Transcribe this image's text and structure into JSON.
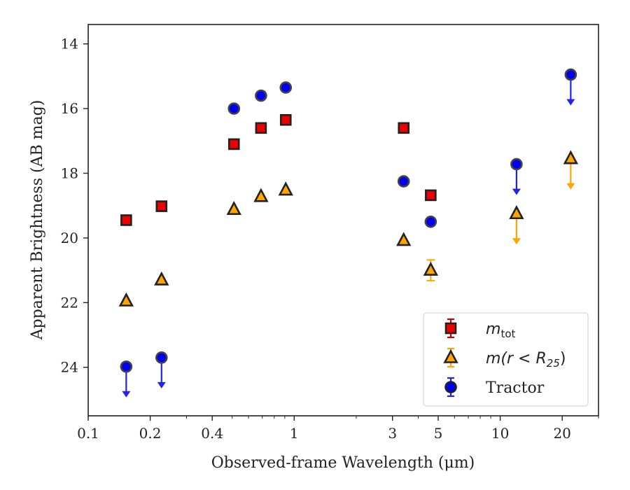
{
  "chart_data": {
    "type": "scatter",
    "title": "",
    "xlabel": "Observed-frame Wavelength (μm)",
    "ylabel": "Apparent Brightness (AB mag)",
    "xscale": "log",
    "xlim": [
      0.1,
      30
    ],
    "ylim": [
      25.5,
      13.4
    ],
    "y_inverted": true,
    "grid": false,
    "legend_position": "bottom-right",
    "x_ticks": [
      {
        "value": 0.1,
        "label": "0.1"
      },
      {
        "value": 0.2,
        "label": "0.2"
      },
      {
        "value": 0.4,
        "label": "0.4"
      },
      {
        "value": 1,
        "label": "1"
      },
      {
        "value": 3,
        "label": "3"
      },
      {
        "value": 5,
        "label": "5"
      },
      {
        "value": 10,
        "label": "10"
      },
      {
        "value": 20,
        "label": "20"
      }
    ],
    "y_ticks": [
      {
        "value": 14,
        "label": "14"
      },
      {
        "value": 16,
        "label": "16"
      },
      {
        "value": 18,
        "label": "18"
      },
      {
        "value": 20,
        "label": "20"
      },
      {
        "value": 22,
        "label": "22"
      },
      {
        "value": 24,
        "label": "24"
      }
    ],
    "series": [
      {
        "name": "m_tot",
        "marker": "square",
        "color": "#ee0000",
        "edge_color": "#222222",
        "error_color": "#cc0000",
        "points": [
          {
            "x": 0.153,
            "y": 19.45,
            "upper_limit": false
          },
          {
            "x": 0.227,
            "y": 19.02,
            "upper_limit": false
          },
          {
            "x": 0.51,
            "y": 17.1,
            "upper_limit": false
          },
          {
            "x": 0.69,
            "y": 16.6,
            "upper_limit": false
          },
          {
            "x": 0.91,
            "y": 16.35,
            "upper_limit": false
          },
          {
            "x": 3.4,
            "y": 16.6,
            "upper_limit": false
          },
          {
            "x": 4.6,
            "y": 18.68,
            "upper_limit": false
          }
        ]
      },
      {
        "name": "m(r < R25)",
        "marker": "triangle",
        "color": "#ffa500",
        "edge_color": "#222222",
        "error_color": "#ffa500",
        "points": [
          {
            "x": 0.153,
            "y": 21.95,
            "upper_limit": false
          },
          {
            "x": 0.227,
            "y": 21.3,
            "upper_limit": false
          },
          {
            "x": 0.51,
            "y": 19.12,
            "upper_limit": false
          },
          {
            "x": 0.69,
            "y": 18.72,
            "upper_limit": false
          },
          {
            "x": 0.91,
            "y": 18.52,
            "upper_limit": false
          },
          {
            "x": 3.4,
            "y": 20.08,
            "upper_limit": false
          },
          {
            "x": 4.6,
            "y": 21.0,
            "upper_limit": false,
            "err": 0.32
          },
          {
            "x": 12.0,
            "y": 19.25,
            "upper_limit": true
          },
          {
            "x": 22.0,
            "y": 17.55,
            "upper_limit": true
          }
        ]
      },
      {
        "name": "Tractor",
        "marker": "circle",
        "color": "#0000ee",
        "edge_color": "#444444",
        "error_color": "#2222ee",
        "points": [
          {
            "x": 0.153,
            "y": 23.98,
            "upper_limit": true
          },
          {
            "x": 0.227,
            "y": 23.7,
            "upper_limit": true
          },
          {
            "x": 0.51,
            "y": 16.0,
            "upper_limit": false
          },
          {
            "x": 0.69,
            "y": 15.6,
            "upper_limit": false
          },
          {
            "x": 0.91,
            "y": 15.35,
            "upper_limit": false
          },
          {
            "x": 3.4,
            "y": 18.25,
            "upper_limit": false
          },
          {
            "x": 4.6,
            "y": 19.5,
            "upper_limit": false
          },
          {
            "x": 12.0,
            "y": 17.72,
            "upper_limit": true
          },
          {
            "x": 22.0,
            "y": 14.95,
            "upper_limit": true
          }
        ]
      }
    ],
    "legend": {
      "entries": [
        {
          "marker": "square",
          "color": "#ee0000",
          "error_color": "#cc0000",
          "label_main": "m",
          "label_sub": "tot"
        },
        {
          "marker": "triangle",
          "color": "#ffa500",
          "error_color": "#ffa500",
          "label_main": "m(r < R",
          "label_sub": "25",
          "label_tail": ")"
        },
        {
          "marker": "circle",
          "color": "#0000ee",
          "error_color": "#2222ee",
          "label_main": "Tractor"
        }
      ]
    }
  }
}
